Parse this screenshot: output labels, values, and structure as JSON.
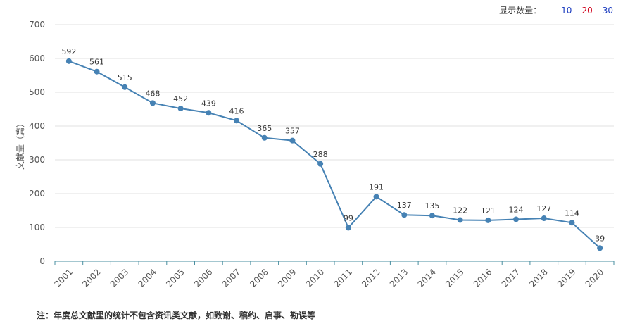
{
  "controls": {
    "label": "显示数量：",
    "options": [
      {
        "text": "10",
        "color": "#1a3bbf"
      },
      {
        "text": "20",
        "color": "#d0021b"
      },
      {
        "text": "30",
        "color": "#1a3bbf"
      }
    ]
  },
  "note": "注：年度总文献里的统计不包含资讯类文献，如致谢、稿约、启事、勘误等",
  "chart_data": {
    "type": "line",
    "ylabel": "文献量（篇）",
    "xlabel": "",
    "ylim": [
      0,
      700
    ],
    "yticks": [
      0,
      100,
      200,
      300,
      400,
      500,
      600,
      700
    ],
    "categories": [
      "2001",
      "2002",
      "2003",
      "2004",
      "2005",
      "2006",
      "2007",
      "2008",
      "2009",
      "2010",
      "2011",
      "2012",
      "2013",
      "2014",
      "2015",
      "2016",
      "2017",
      "2018",
      "2019",
      "2020"
    ],
    "series": [
      {
        "values": [
          592,
          561,
          515,
          468,
          452,
          439,
          416,
          365,
          357,
          288,
          99,
          191,
          137,
          135,
          122,
          121,
          124,
          127,
          114,
          39
        ],
        "color": "#4682b4"
      }
    ],
    "grid": true,
    "data_labels": true
  }
}
